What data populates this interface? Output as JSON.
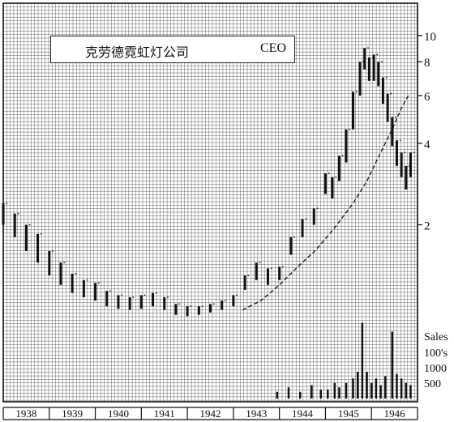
{
  "title": {
    "company": "克劳德霓虹灯公司",
    "tag": "CEO"
  },
  "colors": {
    "ink": "#111111",
    "grid": "#555555",
    "background": "#ffffff"
  },
  "chart_data": {
    "type": "bar",
    "subtype": "high-low price chart with volume bars",
    "x_axis": {
      "labels": [
        "1938",
        "1939",
        "1940",
        "1941",
        "1942",
        "1943",
        "1944",
        "1945",
        "1946"
      ]
    },
    "y_axis": {
      "position": "right",
      "scale": "log",
      "ticks": [
        "2",
        "4",
        "6",
        "8",
        "10"
      ],
      "ylim": [
        0.7,
        11
      ]
    },
    "volume_axis": {
      "labels": [
        "Sales",
        "100's",
        "1000",
        "500"
      ],
      "ticks": [
        1000,
        500
      ]
    },
    "grid": true,
    "price_series": {
      "x": [
        1938.0,
        1938.25,
        1938.5,
        1938.75,
        1939.0,
        1939.25,
        1939.5,
        1939.75,
        1940.0,
        1940.25,
        1940.5,
        1940.75,
        1941.0,
        1941.25,
        1941.5,
        1941.75,
        1942.0,
        1942.25,
        1942.5,
        1942.75,
        1943.0,
        1943.25,
        1943.5,
        1943.75,
        1944.0,
        1944.25,
        1944.5,
        1944.75,
        1945.0,
        1945.15,
        1945.3,
        1945.45,
        1945.6,
        1945.75,
        1945.85,
        1945.95,
        1946.05,
        1946.15,
        1946.25,
        1946.35,
        1946.45,
        1946.55,
        1946.65,
        1946.75,
        1946.85
      ],
      "high": [
        2.4,
        2.2,
        2.0,
        1.85,
        1.6,
        1.45,
        1.32,
        1.25,
        1.22,
        1.14,
        1.1,
        1.08,
        1.1,
        1.12,
        1.08,
        1.02,
        1.0,
        1.0,
        1.02,
        1.05,
        1.1,
        1.3,
        1.45,
        1.38,
        1.4,
        1.8,
        2.1,
        2.3,
        3.1,
        3.0,
        3.6,
        4.5,
        6.2,
        8.0,
        9.0,
        8.3,
        8.5,
        8.0,
        7.0,
        6.1,
        5.0,
        4.1,
        3.7,
        3.3,
        3.7
      ],
      "low": [
        2.0,
        1.8,
        1.6,
        1.45,
        1.3,
        1.2,
        1.12,
        1.08,
        1.05,
        1.0,
        0.98,
        0.97,
        0.98,
        1.0,
        0.97,
        0.93,
        0.92,
        0.93,
        0.95,
        0.97,
        1.0,
        1.15,
        1.25,
        1.2,
        1.25,
        1.55,
        1.8,
        2.0,
        2.6,
        2.5,
        2.9,
        3.4,
        4.5,
        6.0,
        7.5,
        6.8,
        6.8,
        6.5,
        5.6,
        4.8,
        3.9,
        3.3,
        3.0,
        2.7,
        3.0
      ]
    },
    "trend_line": {
      "x": [
        1943.2,
        1943.6,
        1944.0,
        1944.4,
        1944.8,
        1945.2,
        1945.6,
        1945.9,
        1946.2,
        1946.45,
        1946.65,
        1946.8
      ],
      "y": [
        0.97,
        1.05,
        1.2,
        1.4,
        1.62,
        1.95,
        2.4,
        2.9,
        3.7,
        4.5,
        5.4,
        6.0
      ]
    },
    "volume": {
      "x": [
        1943.95,
        1944.2,
        1944.45,
        1944.7,
        1944.9,
        1945.05,
        1945.2,
        1945.3,
        1945.45,
        1945.6,
        1945.7,
        1945.8,
        1945.9,
        1946.0,
        1946.1,
        1946.2,
        1946.3,
        1946.45,
        1946.55,
        1946.65,
        1946.75,
        1946.85
      ],
      "values": [
        150,
        250,
        150,
        300,
        200,
        200,
        350,
        250,
        350,
        450,
        600,
        1700,
        600,
        350,
        450,
        300,
        500,
        1500,
        550,
        450,
        350,
        300
      ]
    }
  }
}
